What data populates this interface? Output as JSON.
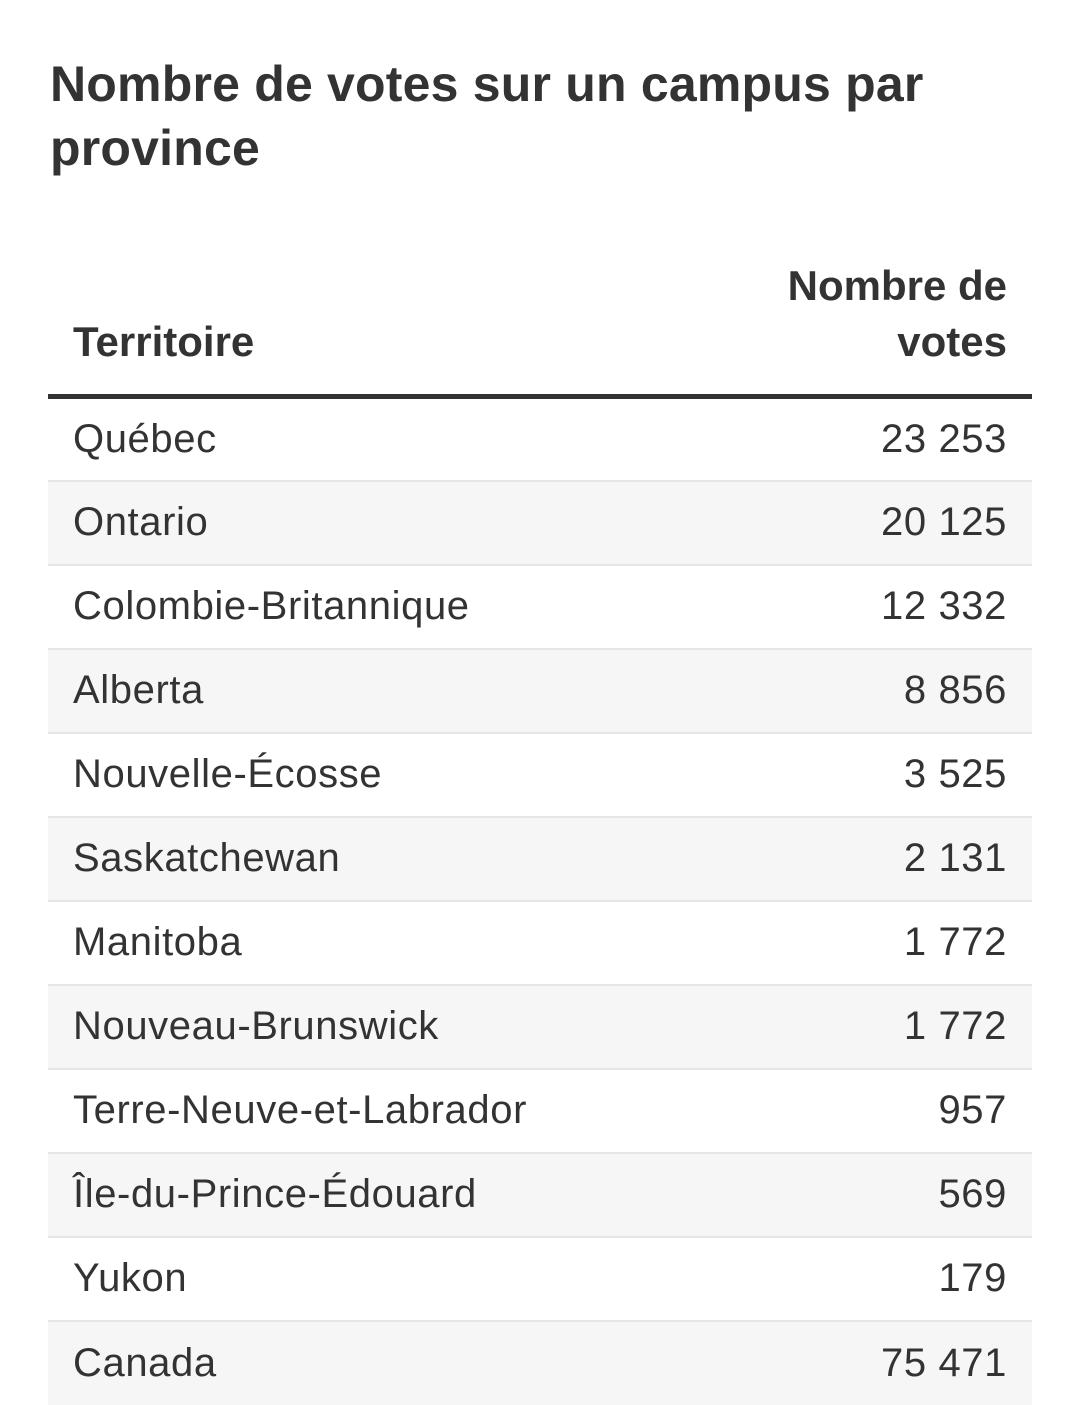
{
  "chart_data": {
    "type": "table",
    "title": "Nombre de votes sur un campus par province",
    "columns": [
      "Territoire",
      "Nombre de votes"
    ],
    "rows": [
      {
        "label": "Québec",
        "value_text": "23 253",
        "value": 23253
      },
      {
        "label": "Ontario",
        "value_text": "20 125",
        "value": 20125
      },
      {
        "label": "Colombie-Britannique",
        "value_text": "12 332",
        "value": 12332
      },
      {
        "label": "Alberta",
        "value_text": "8 856",
        "value": 8856
      },
      {
        "label": "Nouvelle-Écosse",
        "value_text": "3 525",
        "value": 3525
      },
      {
        "label": "Saskatchewan",
        "value_text": "2 131",
        "value": 2131
      },
      {
        "label": "Manitoba",
        "value_text": "1 772",
        "value": 1772
      },
      {
        "label": "Nouveau-Brunswick",
        "value_text": "1 772",
        "value": 1772
      },
      {
        "label": "Terre-Neuve-et-Labrador",
        "value_text": "957",
        "value": 957
      },
      {
        "label": "Île-du-Prince-Édouard",
        "value_text": "569",
        "value": 569
      },
      {
        "label": "Yukon",
        "value_text": "179",
        "value": 179
      },
      {
        "label": "Canada",
        "value_text": "75 471",
        "value": 75471
      }
    ]
  },
  "colors": {
    "text": "#333333",
    "header_rule": "#333333",
    "row_alt": "#f6f6f6",
    "row_divider": "#e6e6e6"
  }
}
